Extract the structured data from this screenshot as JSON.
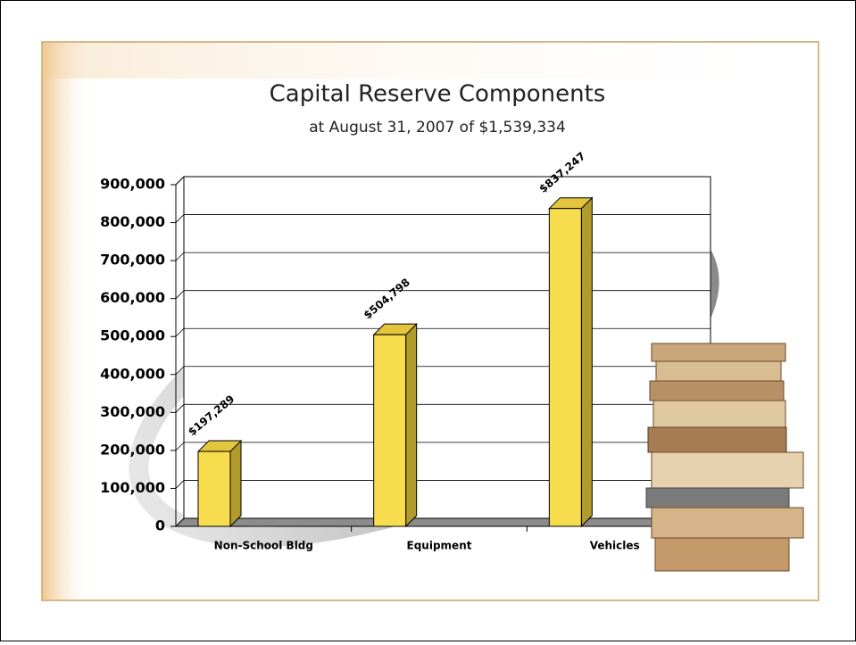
{
  "chart_data": {
    "type": "bar3d",
    "title": "Capital Reserve Components",
    "subtitle": "at August 31, 2007 of $1,539,334",
    "categories": [
      "Non-School Bldg",
      "Equipment",
      "Vehicles"
    ],
    "values": [
      197289,
      504798,
      837247
    ],
    "value_labels": [
      "$197,289",
      "$504,798",
      "$837,247"
    ],
    "color": "#f7dc4e",
    "ylim": [
      0,
      900000
    ],
    "yticks": [
      0,
      {
        "value": 100000,
        "label": "100,000"
      },
      {
        "value": 200000,
        "label": "200,000"
      },
      {
        "value": 300000,
        "label": "300,000"
      },
      {
        "value": 400000,
        "label": "400,000"
      },
      {
        "value": 500000,
        "label": "500,000"
      },
      {
        "value": 600000,
        "label": "600,000"
      },
      {
        "value": 700000,
        "label": "700,000"
      },
      {
        "value": 800000,
        "label": "800,000"
      },
      {
        "value": 900000,
        "label": "900,000"
      }
    ],
    "grid": true,
    "annotation": "Text"
  }
}
